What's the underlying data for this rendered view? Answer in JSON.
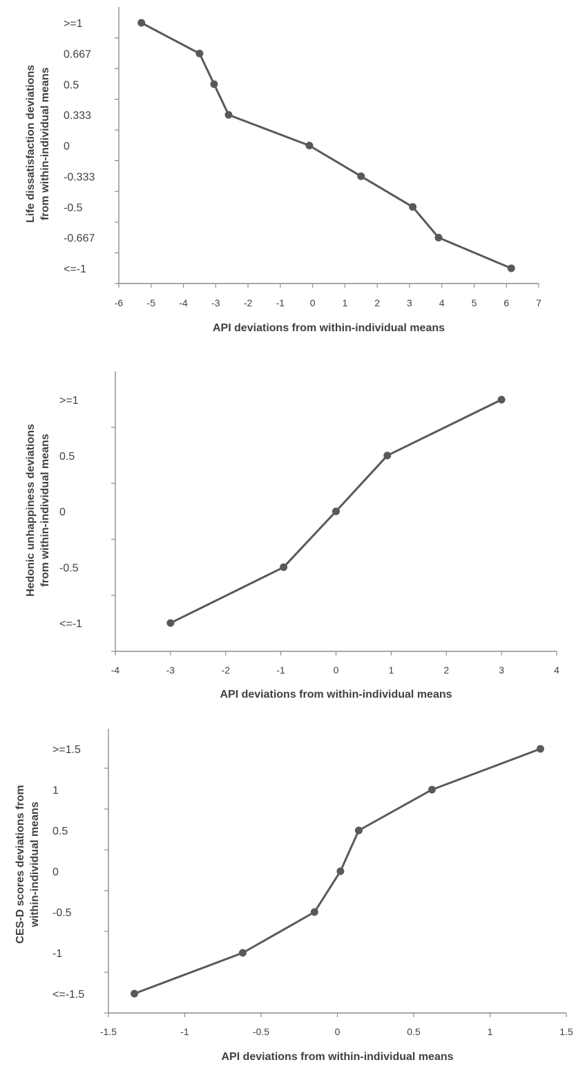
{
  "chart_data": [
    {
      "type": "line",
      "title": "",
      "xlabel": "API deviations from within-individual means",
      "ylabel_lines": [
        "Life dissatisfaction deviations",
        "from within-individual means"
      ],
      "xlim": [
        -6,
        7
      ],
      "x_ticks": [
        "-6",
        "-5",
        "-4",
        "-3",
        "-2",
        "-1",
        "0",
        "1",
        "2",
        "3",
        "4",
        "5",
        "6",
        "7"
      ],
      "y_categories": [
        ">=1",
        "0.667",
        "0.5",
        "0.333",
        "0",
        "-0.333",
        "-0.5",
        "-0.667",
        "<=-1"
      ],
      "grid": false,
      "legend": "none",
      "color": "#595959",
      "series": [
        {
          "x": [
            -5.3,
            -3.5,
            -3.05,
            -2.6,
            -0.1,
            1.5,
            3.1,
            3.9,
            6.15
          ],
          "y": [
            ">=1",
            "0.667",
            "0.5",
            "0.333",
            "0",
            "-0.333",
            "-0.5",
            "-0.667",
            "<=-1"
          ]
        }
      ]
    },
    {
      "type": "line",
      "title": "",
      "xlabel": "API deviations from within-individual means",
      "ylabel_lines": [
        "Hedonic unhappiness deviations",
        "from within-individual means"
      ],
      "xlim": [
        -4,
        4
      ],
      "x_ticks": [
        "-4",
        "-3",
        "-2",
        "-1",
        "0",
        "1",
        "2",
        "3",
        "4"
      ],
      "y_categories": [
        ">=1",
        "0.5",
        "0",
        "-0.5",
        "<=-1"
      ],
      "grid": false,
      "legend": "none",
      "color": "#595959",
      "series": [
        {
          "x": [
            -3.0,
            -0.95,
            0.0,
            0.93,
            3.0
          ],
          "y": [
            "<=-1",
            "-0.5",
            "0",
            "0.5",
            ">=1"
          ]
        }
      ]
    },
    {
      "type": "line",
      "title": "",
      "xlabel": "API deviations from within-individual means",
      "ylabel_lines": [
        "CES-D scores deviations from",
        "within-individual means"
      ],
      "xlim": [
        -1.5,
        1.5
      ],
      "x_ticks": [
        "-1.5",
        "-1",
        "-0.5",
        "0",
        "0.5",
        "1",
        "1.5"
      ],
      "y_categories": [
        ">=1.5",
        "1",
        "0.5",
        "0",
        "-0.5",
        "-1",
        "<=-1.5"
      ],
      "grid": false,
      "legend": "none",
      "color": "#595959",
      "series": [
        {
          "x": [
            -1.33,
            -0.62,
            -0.15,
            0.02,
            0.14,
            0.62,
            1.33
          ],
          "y": [
            "<=-1.5",
            "-1",
            "-0.5",
            "0",
            "0.5",
            "1",
            ">=1.5"
          ]
        }
      ]
    }
  ]
}
